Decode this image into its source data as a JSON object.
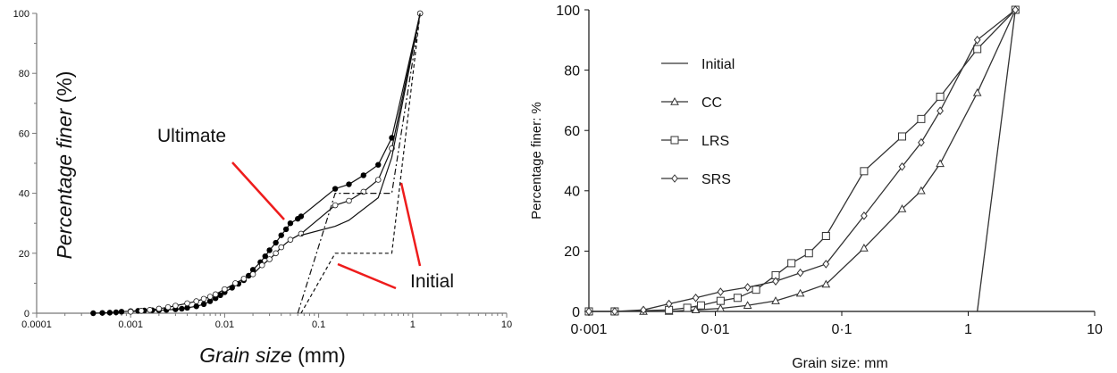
{
  "chart_data": [
    {
      "type": "line",
      "title": "",
      "xlabel_italic": "Grain size",
      "xlabel_unit": " (mm)",
      "ylabel_italic": "Percentage finer",
      "ylabel_unit": " (%)",
      "xscale": "log",
      "xlim": [
        0.0001,
        10
      ],
      "ylim": [
        0,
        100
      ],
      "xticks": [
        "0.0001",
        "0.001",
        "0.01",
        "0.1",
        "1",
        "10"
      ],
      "yticks": [
        "0",
        "20",
        "40",
        "60",
        "80",
        "100"
      ],
      "grid": false,
      "annotations": [
        "Ultimate",
        "Initial"
      ],
      "series": [
        {
          "name": "Ultimate (filled circles)",
          "marker": "filled-circle",
          "style": "solid",
          "x": [
            0.0004,
            0.0005,
            0.0006,
            0.0007,
            0.0008,
            0.001,
            0.0012,
            0.0014,
            0.0017,
            0.002,
            0.0024,
            0.003,
            0.0035,
            0.004,
            0.005,
            0.006,
            0.007,
            0.008,
            0.009,
            0.01,
            0.012,
            0.014,
            0.016,
            0.018,
            0.02,
            0.024,
            0.027,
            0.03,
            0.035,
            0.04,
            0.045,
            0.05,
            0.06,
            0.065,
            0.15,
            0.21,
            0.3,
            0.43,
            0.6,
            1.2
          ],
          "y": [
            0,
            0.1,
            0.2,
            0.3,
            0.5,
            0.7,
            0.8,
            0.9,
            1,
            1,
            1.1,
            1.3,
            1.5,
            1.8,
            2.3,
            3,
            4,
            5,
            6,
            7,
            8.5,
            9.8,
            11,
            12.5,
            14.5,
            17,
            19,
            21,
            23.5,
            26,
            28,
            30,
            31.5,
            32.3,
            41.5,
            43,
            46,
            49.5,
            58.5,
            100
          ]
        },
        {
          "name": "Ultimate (open circles)",
          "marker": "open-circle",
          "style": "solid",
          "x": [
            0.001,
            0.0013,
            0.0016,
            0.002,
            0.0025,
            0.003,
            0.004,
            0.005,
            0.006,
            0.007,
            0.008,
            0.01,
            0.013,
            0.016,
            0.02,
            0.025,
            0.03,
            0.035,
            0.04,
            0.05,
            0.065,
            0.15,
            0.21,
            0.3,
            0.43,
            0.6,
            1.2
          ],
          "y": [
            0.5,
            0.8,
            1.1,
            1.5,
            2,
            2.5,
            3.3,
            4,
            4.8,
            5.5,
            6.3,
            8,
            10,
            11.5,
            13,
            16,
            18,
            20,
            22,
            24.5,
            26.5,
            36,
            37.5,
            40.5,
            44.5,
            55,
            100
          ]
        },
        {
          "name": "Ultimate (plain)",
          "marker": "none",
          "style": "solid",
          "x": [
            0.065,
            0.15,
            0.21,
            0.43,
            0.6,
            1.2
          ],
          "y": [
            26,
            29,
            31,
            38.5,
            52,
            100
          ]
        },
        {
          "name": "Initial (dashed)",
          "marker": "none",
          "style": "dashed",
          "x": [
            0.065,
            0.15,
            0.6,
            1.2
          ],
          "y": [
            0,
            20,
            20,
            100
          ]
        },
        {
          "name": "Initial (dash-dot)",
          "marker": "none",
          "style": "dashdot",
          "x": [
            0.06,
            0.15,
            0.6,
            1.2
          ],
          "y": [
            0,
            40,
            40,
            100
          ]
        }
      ],
      "annotation_color": "#ee1c1c"
    },
    {
      "type": "line",
      "title": "",
      "xlabel": "Grain size: mm",
      "ylabel": "Percentage finer: %",
      "xscale": "log",
      "xlim": [
        0.001,
        10
      ],
      "ylim": [
        0,
        100
      ],
      "xticks": [
        "0·001",
        "0·01",
        "0·1",
        "1",
        "10"
      ],
      "yticks": [
        "0",
        "20",
        "40",
        "60",
        "80",
        "100"
      ],
      "grid": false,
      "legend_position": "top-left",
      "series": [
        {
          "name": "Initial",
          "marker": "none",
          "x": [
            1.18,
            2.36
          ],
          "y": [
            0,
            100
          ]
        },
        {
          "name": "CC",
          "marker": "triangle",
          "x": [
            0.001,
            0.0016,
            0.0027,
            0.0043,
            0.007,
            0.011,
            0.018,
            0.03,
            0.047,
            0.075,
            0.15,
            0.3,
            0.425,
            0.6,
            1.18,
            2.36
          ],
          "y": [
            0,
            0,
            0,
            0,
            0.5,
            1,
            2,
            3.5,
            6,
            9,
            21,
            34,
            40,
            49,
            72.5,
            100
          ]
        },
        {
          "name": "LRS",
          "marker": "square",
          "x": [
            0.001,
            0.0016,
            0.0043,
            0.006,
            0.0077,
            0.011,
            0.015,
            0.021,
            0.03,
            0.04,
            0.055,
            0.075,
            0.15,
            0.3,
            0.425,
            0.6,
            1.18,
            2.36
          ],
          "y": [
            0,
            0,
            0.5,
            1.2,
            2,
            3.5,
            4.5,
            7.2,
            12,
            16,
            19.3,
            25,
            46.5,
            58,
            63.8,
            71.2,
            87,
            100
          ]
        },
        {
          "name": "SRS",
          "marker": "diamond",
          "x": [
            0.001,
            0.0016,
            0.0027,
            0.0043,
            0.007,
            0.011,
            0.018,
            0.03,
            0.047,
            0.075,
            0.15,
            0.3,
            0.425,
            0.6,
            1.18,
            2.36
          ],
          "y": [
            0,
            0,
            0.5,
            2.5,
            4.5,
            6.5,
            8,
            10,
            12.8,
            15.7,
            31.7,
            48,
            56,
            66.5,
            90,
            100
          ]
        }
      ]
    }
  ]
}
